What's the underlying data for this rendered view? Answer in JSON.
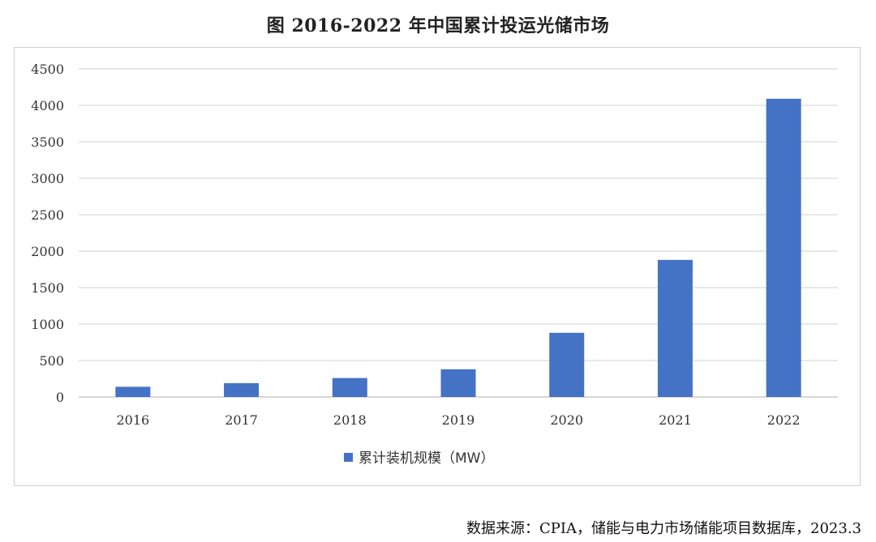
{
  "chart_data": {
    "type": "bar",
    "title": "图 2016-2022 年中国累计投运光储市场",
    "categories": [
      "2016",
      "2017",
      "2018",
      "2019",
      "2020",
      "2021",
      "2022"
    ],
    "series": [
      {
        "name": "累计装机规模（MW）",
        "color": "#4472C4",
        "values": [
          140,
          190,
          260,
          380,
          880,
          1880,
          4090
        ]
      }
    ],
    "ylim": [
      0,
      4500
    ],
    "yticks": [
      0,
      500,
      1000,
      1500,
      2000,
      2500,
      3000,
      3500,
      4000,
      4500
    ],
    "grid": true,
    "legend_position": "bottom"
  },
  "source_note": "数据来源：CPIA，储能与电力市场储能项目数据库，2023.3"
}
